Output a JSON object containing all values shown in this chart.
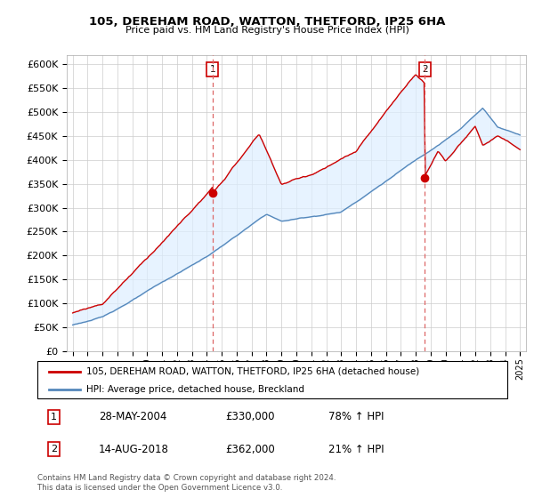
{
  "title": "105, DEREHAM ROAD, WATTON, THETFORD, IP25 6HA",
  "subtitle": "Price paid vs. HM Land Registry's House Price Index (HPI)",
  "property_label": "105, DEREHAM ROAD, WATTON, THETFORD, IP25 6HA (detached house)",
  "hpi_label": "HPI: Average price, detached house, Breckland",
  "footer": "Contains HM Land Registry data © Crown copyright and database right 2024.\nThis data is licensed under the Open Government Licence v3.0.",
  "point1_label": "28-MAY-2004",
  "point1_price": "£330,000",
  "point1_hpi": "78% ↑ HPI",
  "point2_label": "14-AUG-2018",
  "point2_price": "£362,000",
  "point2_hpi": "21% ↑ HPI",
  "property_color": "#cc0000",
  "hpi_color": "#5588bb",
  "fill_color": "#ddeeff",
  "dashed_color": "#dd6666",
  "ylim": [
    0,
    620000
  ],
  "yticks": [
    0,
    50000,
    100000,
    150000,
    200000,
    250000,
    300000,
    350000,
    400000,
    450000,
    500000,
    550000,
    600000
  ],
  "point1_x": 2004.38,
  "point1_y": 330000,
  "point2_x": 2018.62,
  "point2_y": 362000,
  "xlim_left": 1994.6,
  "xlim_right": 2025.4
}
